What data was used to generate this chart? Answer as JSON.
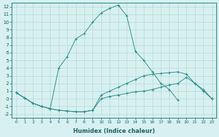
{
  "line1": {
    "x": [
      0,
      1,
      2,
      3,
      4,
      5,
      6,
      7,
      8,
      9,
      10,
      11,
      12,
      13,
      14,
      15,
      16,
      17,
      18,
      19,
      20,
      21,
      22,
      23
    ],
    "y": [
      0.8,
      0.1,
      -0.6,
      -1.0,
      -1.3,
      -1.5,
      -1.6,
      -1.7,
      -1.7,
      -1.5,
      0.0,
      0.3,
      0.5,
      0.7,
      0.9,
      1.0,
      1.2,
      1.5,
      1.8,
      2.0,
      2.8,
      2.0,
      1.0,
      0.0
    ]
  },
  "line2": {
    "x": [
      0,
      1,
      2,
      3,
      4,
      5,
      6,
      7,
      8,
      9,
      10,
      11,
      12,
      13,
      14,
      15,
      16,
      17,
      18,
      19,
      20,
      21,
      22,
      23
    ],
    "y": [
      0.8,
      0.1,
      -0.6,
      -1.0,
      -1.3,
      -1.5,
      -1.6,
      -1.7,
      -1.7,
      -1.5,
      0.5,
      1.0,
      1.5,
      2.0,
      2.5,
      3.0,
      3.2,
      3.3,
      3.4,
      3.5,
      3.2,
      2.0,
      1.2,
      0.0
    ]
  },
  "line3": {
    "x": [
      0,
      1,
      2,
      3,
      4,
      5,
      6,
      7,
      8,
      9,
      10,
      11,
      12,
      13,
      14,
      15,
      16,
      17,
      18,
      19
    ],
    "y": [
      0.8,
      0.1,
      -0.6,
      -1.0,
      -1.3,
      4.0,
      5.5,
      7.8,
      8.5,
      10.0,
      11.2,
      11.8,
      12.2,
      10.8,
      6.2,
      5.0,
      3.5,
      2.0,
      1.2,
      -0.2
    ]
  },
  "xlabel": "Humidex (Indice chaleur)",
  "xlim": [
    -0.5,
    23.5
  ],
  "ylim": [
    -2.5,
    12.5
  ],
  "xticks": [
    0,
    1,
    2,
    3,
    4,
    5,
    6,
    7,
    8,
    9,
    10,
    11,
    12,
    13,
    14,
    15,
    16,
    17,
    18,
    19,
    20,
    21,
    22,
    23
  ],
  "yticks": [
    -2,
    -1,
    0,
    1,
    2,
    3,
    4,
    5,
    6,
    7,
    8,
    9,
    10,
    11,
    12
  ],
  "line_color": "#2E8B8B",
  "bg_color": "#D8F0F0",
  "grid_color": "#B0D8D8"
}
